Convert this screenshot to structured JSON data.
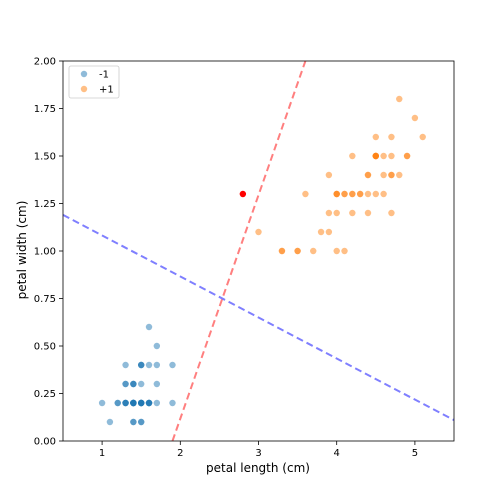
{
  "chart_data": {
    "type": "scatter",
    "title": "",
    "xlabel": "petal length (cm)",
    "ylabel": "petal width (cm)",
    "xlim": [
      0.5,
      5.5
    ],
    "ylim": [
      0.0,
      2.0
    ],
    "xticks": [
      1,
      2,
      3,
      4,
      5
    ],
    "xtick_labels": [
      "1",
      "2",
      "3",
      "4",
      "5"
    ],
    "yticks": [
      0.0,
      0.25,
      0.5,
      0.75,
      1.0,
      1.25,
      1.5,
      1.75,
      2.0
    ],
    "ytick_labels": [
      "0.00",
      "0.25",
      "0.50",
      "0.75",
      "1.00",
      "1.25",
      "1.50",
      "1.75",
      "2.00"
    ],
    "grid": false,
    "legend_position": "top-left",
    "series": [
      {
        "name": "-1",
        "color": "#1f77b4",
        "points": [
          [
            1.4,
            0.2
          ],
          [
            1.4,
            0.2
          ],
          [
            1.3,
            0.2
          ],
          [
            1.5,
            0.2
          ],
          [
            1.4,
            0.2
          ],
          [
            1.7,
            0.4
          ],
          [
            1.4,
            0.3
          ],
          [
            1.5,
            0.2
          ],
          [
            1.4,
            0.2
          ],
          [
            1.5,
            0.1
          ],
          [
            1.5,
            0.2
          ],
          [
            1.6,
            0.2
          ],
          [
            1.4,
            0.1
          ],
          [
            1.1,
            0.1
          ],
          [
            1.2,
            0.2
          ],
          [
            1.5,
            0.4
          ],
          [
            1.3,
            0.4
          ],
          [
            1.4,
            0.3
          ],
          [
            1.7,
            0.3
          ],
          [
            1.5,
            0.3
          ],
          [
            1.7,
            0.2
          ],
          [
            1.5,
            0.4
          ],
          [
            1.0,
            0.2
          ],
          [
            1.7,
            0.5
          ],
          [
            1.9,
            0.2
          ],
          [
            1.6,
            0.2
          ],
          [
            1.6,
            0.4
          ],
          [
            1.5,
            0.2
          ],
          [
            1.4,
            0.2
          ],
          [
            1.6,
            0.2
          ],
          [
            1.6,
            0.2
          ],
          [
            1.5,
            0.4
          ],
          [
            1.5,
            0.1
          ],
          [
            1.4,
            0.2
          ],
          [
            1.5,
            0.2
          ],
          [
            1.2,
            0.2
          ],
          [
            1.3,
            0.2
          ],
          [
            1.4,
            0.1
          ],
          [
            1.3,
            0.2
          ],
          [
            1.5,
            0.2
          ],
          [
            1.3,
            0.3
          ],
          [
            1.3,
            0.3
          ],
          [
            1.3,
            0.2
          ],
          [
            1.6,
            0.6
          ],
          [
            1.9,
            0.4
          ],
          [
            1.4,
            0.3
          ],
          [
            1.6,
            0.2
          ],
          [
            1.4,
            0.2
          ],
          [
            1.5,
            0.2
          ],
          [
            1.4,
            0.2
          ]
        ]
      },
      {
        "name": "+1",
        "color": "#ff7f0e",
        "points": [
          [
            4.7,
            1.4
          ],
          [
            4.5,
            1.5
          ],
          [
            4.9,
            1.5
          ],
          [
            4.0,
            1.3
          ],
          [
            4.6,
            1.5
          ],
          [
            4.5,
            1.3
          ],
          [
            4.7,
            1.6
          ],
          [
            3.3,
            1.0
          ],
          [
            4.6,
            1.3
          ],
          [
            3.9,
            1.4
          ],
          [
            3.5,
            1.0
          ],
          [
            4.2,
            1.5
          ],
          [
            4.0,
            1.0
          ],
          [
            4.7,
            1.4
          ],
          [
            3.6,
            1.3
          ],
          [
            4.4,
            1.4
          ],
          [
            4.5,
            1.5
          ],
          [
            4.1,
            1.0
          ],
          [
            4.5,
            1.5
          ],
          [
            3.9,
            1.1
          ],
          [
            4.8,
            1.8
          ],
          [
            4.0,
            1.3
          ],
          [
            4.9,
            1.5
          ],
          [
            4.7,
            1.2
          ],
          [
            4.3,
            1.3
          ],
          [
            4.4,
            1.4
          ],
          [
            4.8,
            1.4
          ],
          [
            5.0,
            1.7
          ],
          [
            4.5,
            1.5
          ],
          [
            3.5,
            1.0
          ],
          [
            3.8,
            1.1
          ],
          [
            3.7,
            1.0
          ],
          [
            3.9,
            1.2
          ],
          [
            5.1,
            1.6
          ],
          [
            4.5,
            1.5
          ],
          [
            4.5,
            1.6
          ],
          [
            4.7,
            1.5
          ],
          [
            4.4,
            1.3
          ],
          [
            4.1,
            1.3
          ],
          [
            4.0,
            1.3
          ],
          [
            4.4,
            1.2
          ],
          [
            4.6,
            1.4
          ],
          [
            4.0,
            1.2
          ],
          [
            3.3,
            1.0
          ],
          [
            4.2,
            1.3
          ],
          [
            4.2,
            1.2
          ],
          [
            4.2,
            1.3
          ],
          [
            4.3,
            1.3
          ],
          [
            3.0,
            1.1
          ],
          [
            4.1,
            1.3
          ]
        ]
      }
    ],
    "highlight_point": {
      "x": 2.8,
      "y": 1.3,
      "color": "#ff0000"
    },
    "lines": [
      {
        "color": "#0000ff",
        "style": "dashed",
        "points": [
          [
            0.5,
            1.19
          ],
          [
            5.5,
            0.11
          ]
        ]
      },
      {
        "color": "#ff0000",
        "style": "dashed",
        "points": [
          [
            1.9,
            0.0
          ],
          [
            3.6,
            2.0
          ]
        ]
      }
    ]
  }
}
